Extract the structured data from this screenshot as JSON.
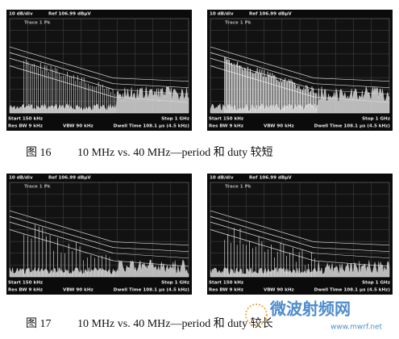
{
  "figures": [
    {
      "panels": [
        {
          "scale": "10 dB/div",
          "ref": "Ref 106.99 dBµV",
          "trace": "Trace 1 Pk",
          "start": "Start 150 kHz",
          "stop": "Stop 1 GHz",
          "rbw": "Res BW 9 kHz",
          "vbw": "VBW 90 kHz",
          "dwell": "Dwell Time 108.1 µs (4.5 kHz)"
        },
        {
          "scale": "10 dB/div",
          "ref": "Ref 106.99 dBµV",
          "trace": "Trace 1 Pk",
          "start": "Start 150 kHz",
          "stop": "Stop 1 GHz",
          "rbw": "Res BW 9 kHz",
          "vbw": "VBW 90 kHz",
          "dwell": "Dwell Time 108.1 µs (4.5 kHz)"
        }
      ],
      "caption": {
        "label": "图 16",
        "text": "10 MHz vs. 40 MHz—period 和 duty 较短"
      }
    },
    {
      "panels": [
        {
          "scale": "10 dB/div",
          "ref": "Ref 106.99 dBµV",
          "trace": "Trace 1 Pk",
          "start": "Start 150 kHz",
          "stop": "Stop 1 GHz",
          "rbw": "Res BW 9 kHz",
          "vbw": "VBW 90 kHz",
          "dwell": "Dwell Time 108.1 µs (4.5 kHz)"
        },
        {
          "scale": "10 dB/div",
          "ref": "Ref 106.99 dBµV",
          "trace": "Trace 1 Pk",
          "start": "Start 150 kHz",
          "stop": "Stop 1 GHz",
          "rbw": "Res BW 9 kHz",
          "vbw": "VBW 90 kHz",
          "dwell": "Dwell Time 108.1 µs (4.5 kHz)"
        }
      ],
      "caption": {
        "label": "图 17",
        "text": "10 MHz vs. 40 MHz—period 和 duty 较长"
      }
    }
  ],
  "watermark": {
    "name": "微波射频网",
    "url": "www.mwrf.net"
  }
}
